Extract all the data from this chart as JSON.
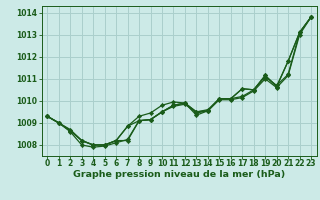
{
  "title": "Graphe pression niveau de la mer (hPa)",
  "bg_color": "#cceae7",
  "grid_color": "#aacfcc",
  "line_color": "#1a5c1a",
  "marker_color": "#1a5c1a",
  "xlim": [
    -0.5,
    23.5
  ],
  "ylim": [
    1007.5,
    1014.3
  ],
  "xticks": [
    0,
    1,
    2,
    3,
    4,
    5,
    6,
    7,
    8,
    9,
    10,
    11,
    12,
    13,
    14,
    15,
    16,
    17,
    18,
    19,
    20,
    21,
    22,
    23
  ],
  "yticks": [
    1008,
    1009,
    1010,
    1011,
    1012,
    1013,
    1014
  ],
  "series": [
    [
      1009.3,
      1009.0,
      1008.7,
      1008.2,
      1008.0,
      1008.0,
      1008.2,
      1008.2,
      1009.1,
      1009.15,
      1009.5,
      1009.8,
      1009.9,
      1009.5,
      1009.6,
      1010.1,
      1010.1,
      1010.2,
      1010.5,
      1011.1,
      1010.7,
      1011.2,
      1013.1,
      1013.8
    ],
    [
      1009.3,
      1009.0,
      1008.6,
      1008.0,
      1007.9,
      1007.95,
      1008.1,
      1008.25,
      1009.1,
      1009.15,
      1009.5,
      1009.75,
      1009.85,
      1009.45,
      1009.55,
      1010.05,
      1010.05,
      1010.15,
      1010.45,
      1011.0,
      1010.6,
      1011.15,
      1013.0,
      1013.8
    ],
    [
      1009.3,
      1009.0,
      1008.65,
      1008.2,
      1008.0,
      1008.0,
      1008.2,
      1008.85,
      1009.1,
      1009.15,
      1009.5,
      1009.8,
      1009.9,
      1009.5,
      1009.55,
      1010.1,
      1010.1,
      1010.55,
      1010.5,
      1011.15,
      1010.65,
      1011.8,
      1013.1,
      1013.8
    ],
    [
      1009.3,
      1009.0,
      1008.65,
      1008.2,
      1008.0,
      1008.0,
      1008.2,
      1008.85,
      1009.3,
      1009.45,
      1009.8,
      1009.95,
      1009.9,
      1009.35,
      1009.55,
      1010.1,
      1010.1,
      1010.55,
      1010.5,
      1011.15,
      1010.65,
      1011.8,
      1013.1,
      1013.8
    ]
  ],
  "tick_fontsize": 5.5,
  "label_fontsize": 6.8,
  "label_fontweight": "bold",
  "linewidth": 0.9,
  "markersize": 2.2
}
